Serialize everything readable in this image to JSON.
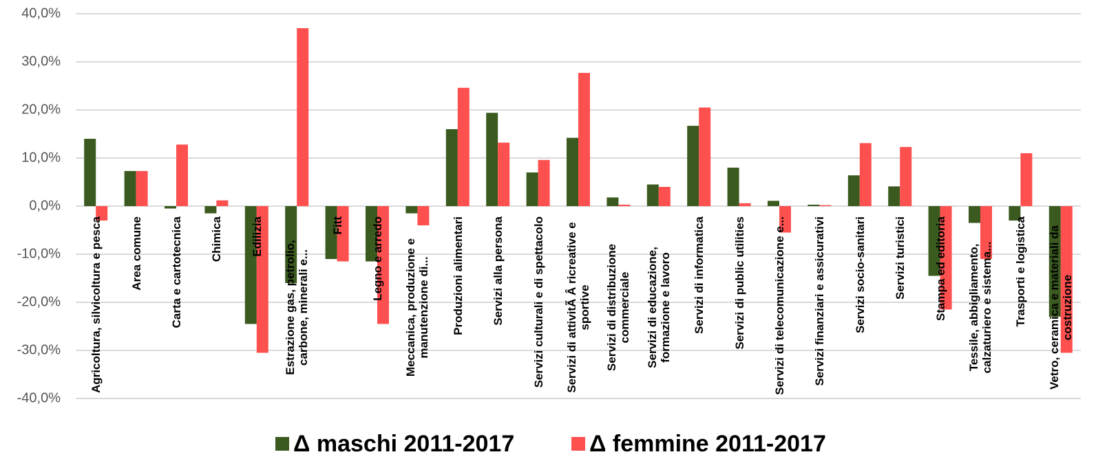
{
  "chart_data": {
    "type": "bar",
    "categories": [
      "Agricoltura, silvicoltura e pesca",
      "Area comune",
      "Carta e cartotecnica",
      "Chimica",
      "Edilizia",
      "Estrazione gas, petrolio, carbone, minerali e...",
      "Fitt",
      "Legno e arredo",
      "Meccanica, produzione e manutenzione di...",
      "Produzioni alimentari",
      "Servizi alla persona",
      "Servizi culturali e di spettacolo",
      "Servizi di attivitÃ Â ricreative e sportive",
      "Servizi di distribuzione commerciale",
      "Servizi di educazione, formazione e lavoro",
      "Servizi di informatica",
      "Servizi di public utilities",
      "Servizi di telecomunicazione e...",
      "Servizi finanziari e assicurativi",
      "Servizi socio-sanitari",
      "Servizi turistici",
      "Stampa ed editoria",
      "Tessile, abbigliamento, calzaturiero e sistema...",
      "Trasporti e logistica",
      "Vetro, ceramica e materiali da costruzione"
    ],
    "series": [
      {
        "name": "Δ maschi 2011-2017",
        "color": "#3b5a1f",
        "values": [
          14,
          7.3,
          -0.5,
          -1.5,
          -24.5,
          -16,
          -11,
          -11.5,
          -1.5,
          16,
          19.4,
          7,
          14.2,
          1.8,
          4.5,
          16.7,
          8,
          1.1,
          0.3,
          6.4,
          4.1,
          -14.5,
          -3.5,
          -3,
          -23
        ]
      },
      {
        "name": "Δ femmine 2011-2017",
        "color": "#ff5050",
        "values": [
          -3,
          7.3,
          12.8,
          1.2,
          -30.5,
          37,
          -11.5,
          -24.5,
          -4,
          24.6,
          13.2,
          9.6,
          27.7,
          0.3,
          4,
          20.5,
          0.6,
          -5.5,
          0.2,
          13.1,
          12.3,
          -21.5,
          -11,
          11,
          -30.5
        ]
      }
    ],
    "ylim": [
      -40,
      40
    ],
    "yticks": [
      {
        "value": -40,
        "label": "-40,0%"
      },
      {
        "value": -30,
        "label": "-30,0%"
      },
      {
        "value": -20,
        "label": "-20,0%"
      },
      {
        "value": -10,
        "label": "-10,0%"
      },
      {
        "value": 0,
        "label": "0,0%"
      },
      {
        "value": 10,
        "label": "10,0%"
      },
      {
        "value": 20,
        "label": "20,0%"
      },
      {
        "value": 30,
        "label": "30,0%"
      },
      {
        "value": 40,
        "label": "40,0%"
      }
    ],
    "grid": true,
    "legend": "bottom"
  }
}
